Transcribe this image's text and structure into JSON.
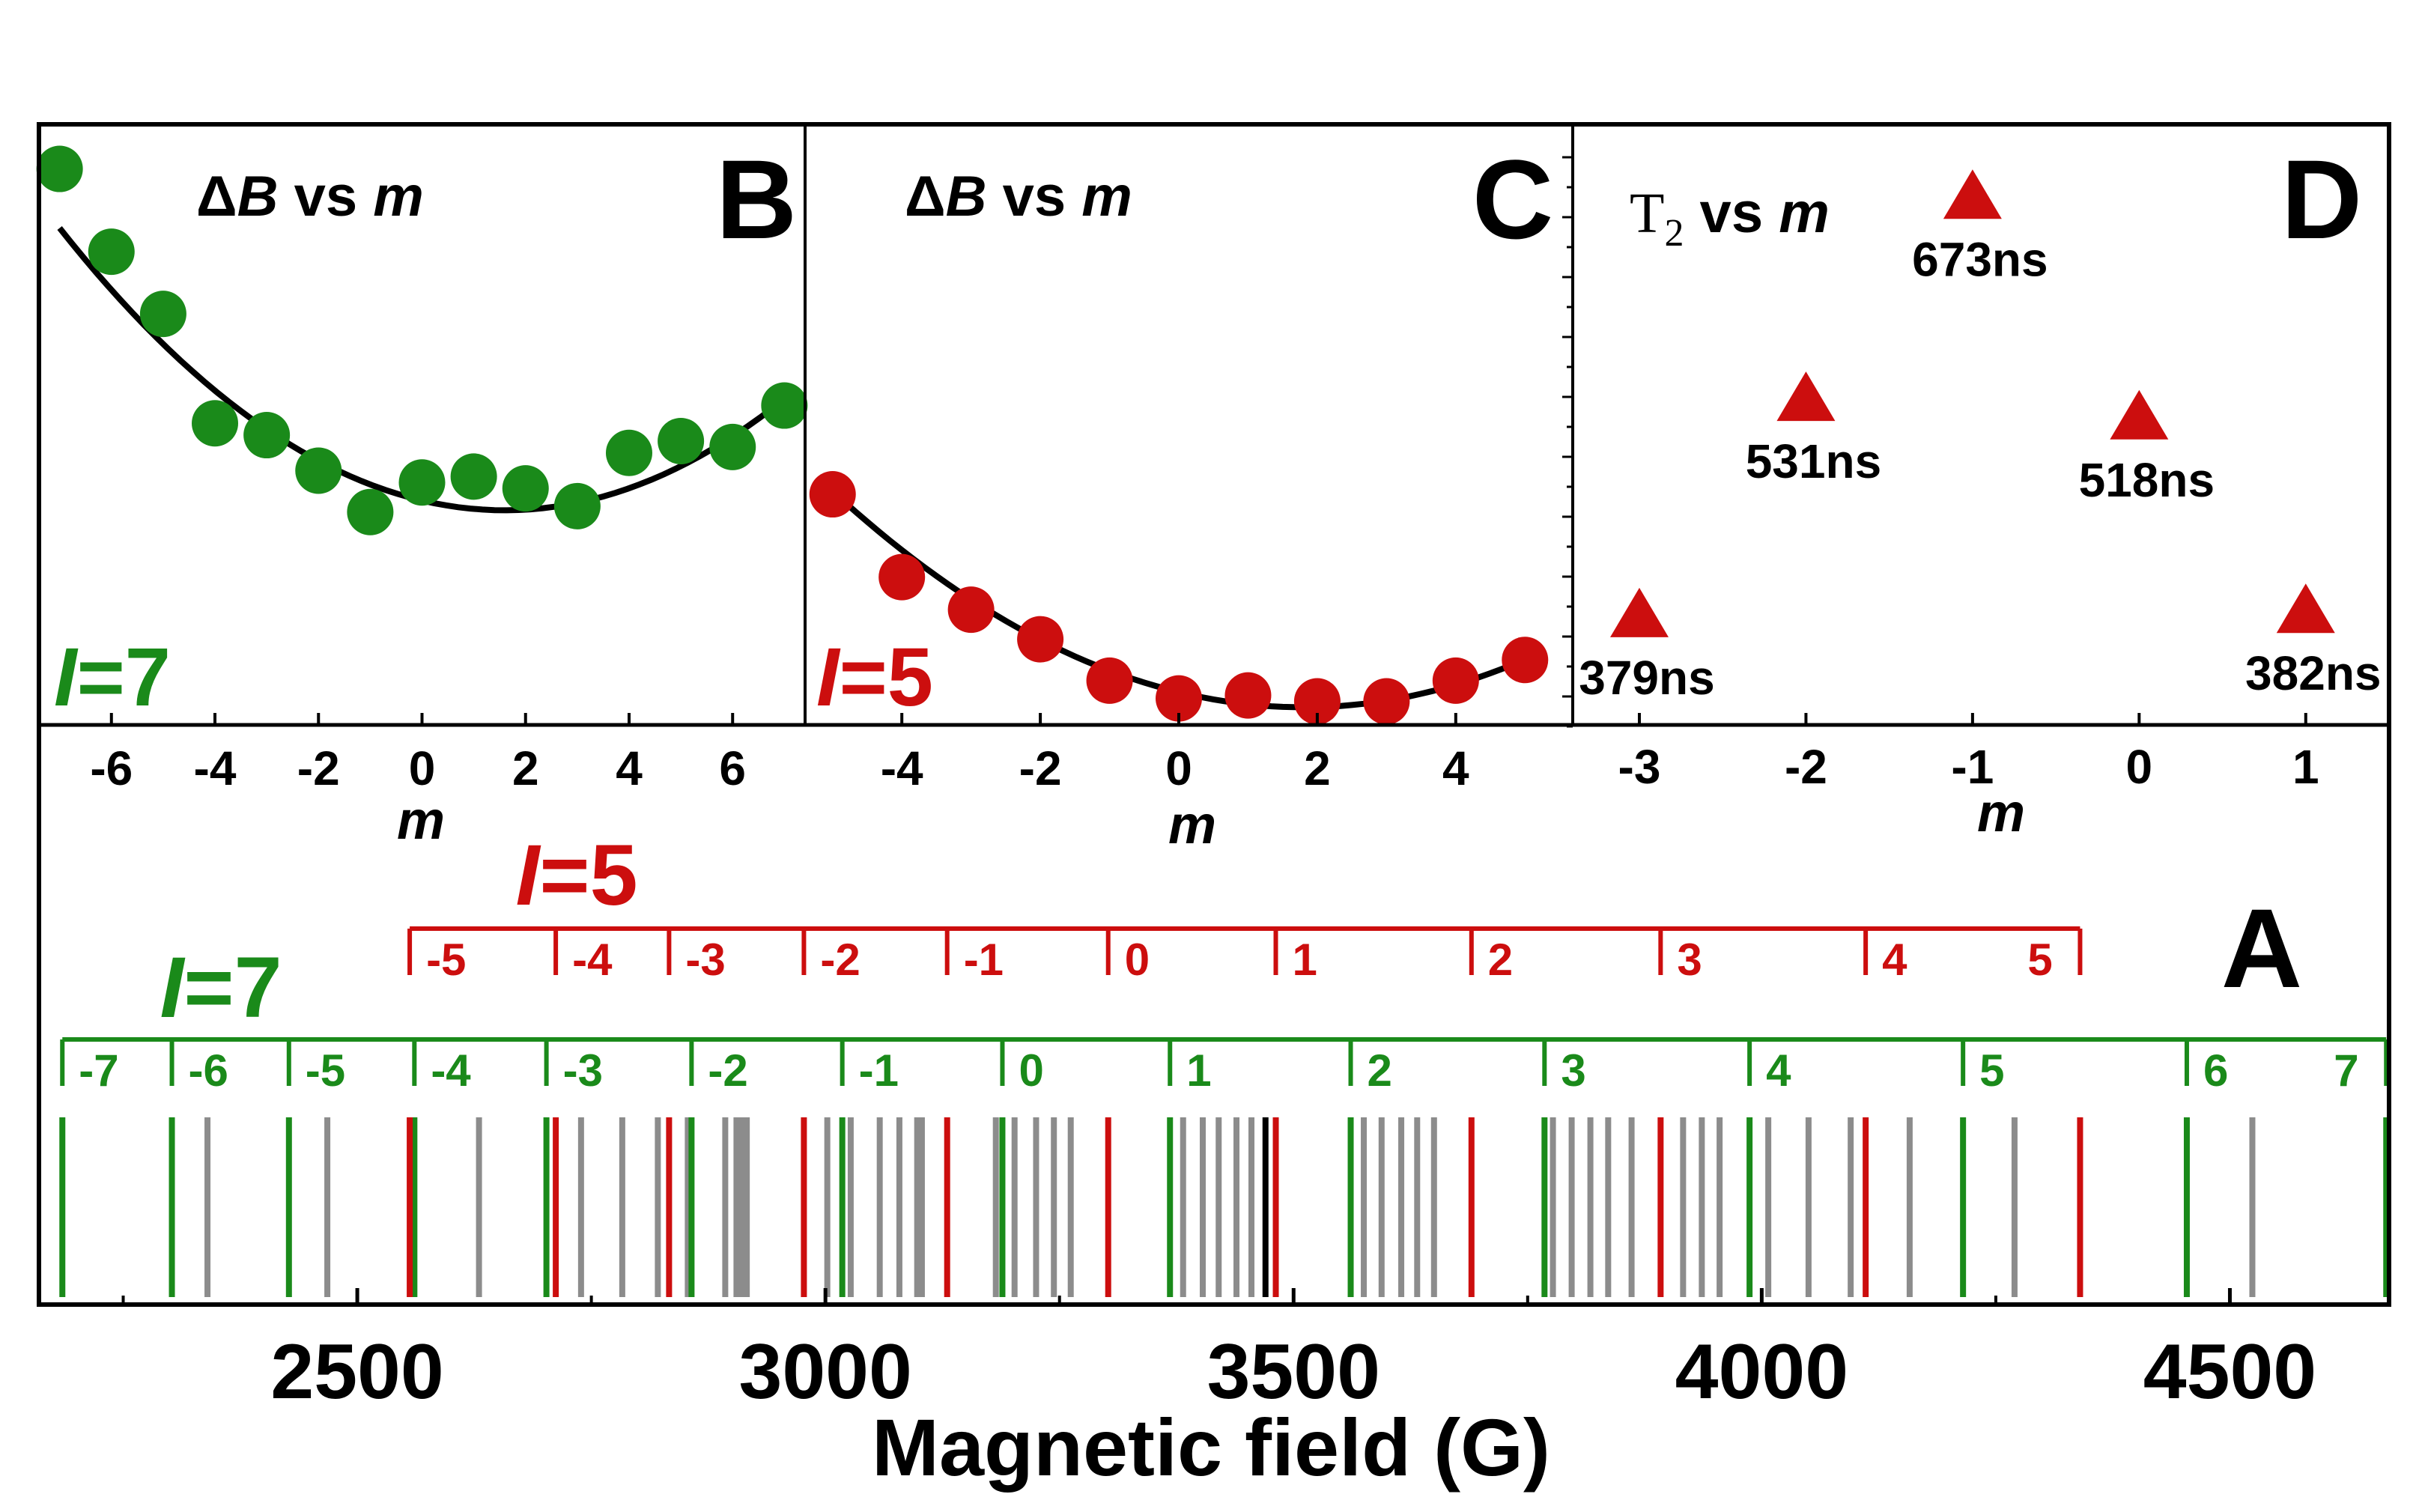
{
  "colors": {
    "green": "#1a8a1a",
    "red": "#cc0e0e",
    "gray": "#8c8c8c",
    "black": "#000000"
  },
  "chart_data": [
    {
      "panel": "A",
      "type": "stick-spectrum",
      "panel_label": "A",
      "xlabel": "Magnetic field (G)",
      "xlim": [
        2160,
        4670
      ],
      "xticks": [
        2500,
        3000,
        3500,
        4000,
        4500
      ],
      "ladders": [
        {
          "name": "I=7",
          "label_italic": "I",
          "label_rest": "=7",
          "color_key": "green",
          "sticks": [
            2185,
            2302,
            2427,
            2561,
            2702,
            2857,
            3018,
            3189,
            3368,
            3561,
            3768,
            3987,
            4215,
            4454,
            4667
          ],
          "m": [
            "-7",
            "-6",
            "-5",
            "-4",
            "-3",
            "-2",
            "-1",
            "0",
            "1",
            "2",
            "3",
            "4",
            "5",
            "6",
            "7"
          ]
        },
        {
          "name": "I=5",
          "label_italic": "I",
          "label_rest": "=5",
          "color_key": "red",
          "sticks": [
            2556,
            2712,
            2833,
            2977,
            3130,
            3302,
            3481,
            3690,
            3892,
            4111,
            4340
          ],
          "m": [
            "-5",
            "-4",
            "-3",
            "-2",
            "-1",
            "0",
            "1",
            "2",
            "3",
            "4",
            "5"
          ]
        }
      ],
      "gray_sticks": [
        2340,
        2468,
        2630,
        2739,
        2783,
        2821,
        2853,
        2893,
        2905,
        2911,
        2916,
        3002,
        3027,
        3058,
        3079,
        3098,
        3103,
        3182,
        3202,
        3225,
        3244,
        3262,
        3382,
        3403,
        3420,
        3439,
        3455,
        3575,
        3594,
        3615,
        3632,
        3650,
        3777,
        3797,
        3817,
        3836,
        3861,
        3916,
        3936,
        3955,
        4007,
        4050,
        4095,
        4158,
        4270,
        4524
      ],
      "black_sticks": [
        3470
      ]
    },
    {
      "panel": "B",
      "type": "scatter",
      "panel_label": "B",
      "title_delta": "Δ",
      "title_var": "B",
      "title_mid": " vs ",
      "title_m": "m",
      "xlabel": "m",
      "inset": "I=7",
      "inset_italic": "I",
      "inset_rest": "=7",
      "color_key": "green",
      "xlim": [
        -7.4,
        7.4
      ],
      "ylim": [
        0,
        1
      ],
      "xticks": [
        -6,
        -4,
        -2,
        0,
        2,
        4,
        6
      ],
      "points": [
        {
          "m": -7,
          "y": 0.955
        },
        {
          "m": -6,
          "y": 0.815
        },
        {
          "m": -5,
          "y": 0.71
        },
        {
          "m": -4,
          "y": 0.525
        },
        {
          "m": -3,
          "y": 0.505
        },
        {
          "m": -2,
          "y": 0.445
        },
        {
          "m": -1,
          "y": 0.375
        },
        {
          "m": 0,
          "y": 0.425
        },
        {
          "m": 1,
          "y": 0.435
        },
        {
          "m": 2,
          "y": 0.415
        },
        {
          "m": 3,
          "y": 0.385
        },
        {
          "m": 4,
          "y": 0.475
        },
        {
          "m": 5,
          "y": 0.495
        },
        {
          "m": 6,
          "y": 0.485
        },
        {
          "m": 7,
          "y": 0.555
        }
      ],
      "fit": {
        "a": 0.00645,
        "b": 1.6,
        "c": 0.378,
        "from": -7,
        "to": 7
      }
    },
    {
      "panel": "C",
      "type": "scatter",
      "panel_label": "C",
      "title_delta": "Δ",
      "title_var": "B",
      "title_mid": " vs ",
      "title_m": "m",
      "xlabel": "m",
      "inset": "I=5",
      "inset_italic": "I",
      "inset_rest": "=5",
      "color_key": "red",
      "xlim": [
        -5.3,
        5.3
      ],
      "ylim": [
        0,
        1
      ],
      "xticks": [
        -4,
        -2,
        0,
        2,
        4
      ],
      "points": [
        {
          "m": -5,
          "y": 0.405
        },
        {
          "m": -4,
          "y": 0.265
        },
        {
          "m": -3,
          "y": 0.21
        },
        {
          "m": -2,
          "y": 0.16
        },
        {
          "m": -1,
          "y": 0.09
        },
        {
          "m": 0,
          "y": 0.06
        },
        {
          "m": 1,
          "y": 0.065
        },
        {
          "m": 2,
          "y": 0.055
        },
        {
          "m": 3,
          "y": 0.055
        },
        {
          "m": 4,
          "y": 0.09
        },
        {
          "m": 5,
          "y": 0.125
        }
      ],
      "fit": {
        "a": 0.0079,
        "b": 1.8,
        "c": 0.045,
        "from": -5,
        "to": 5
      }
    },
    {
      "panel": "D",
      "type": "scatter",
      "panel_label": "D",
      "title_var": "T",
      "title_sub": "2",
      "title_mid": " vs ",
      "title_m": "m",
      "xlabel": "m",
      "color_key": "red",
      "marker": "triangle",
      "xlim": [
        -3.4,
        1.5
      ],
      "ylim": [
        300,
        720
      ],
      "xticks": [
        -3,
        -2,
        -1,
        0,
        1
      ],
      "points": [
        {
          "m": -3,
          "T2": 379,
          "label": "379ns"
        },
        {
          "m": -2,
          "T2": 531,
          "label": "531ns"
        },
        {
          "m": -1,
          "T2": 673,
          "label": "673ns"
        },
        {
          "m": 0,
          "T2": 518,
          "label": "518ns"
        },
        {
          "m": 1,
          "T2": 382,
          "label": "382ns"
        }
      ]
    }
  ]
}
